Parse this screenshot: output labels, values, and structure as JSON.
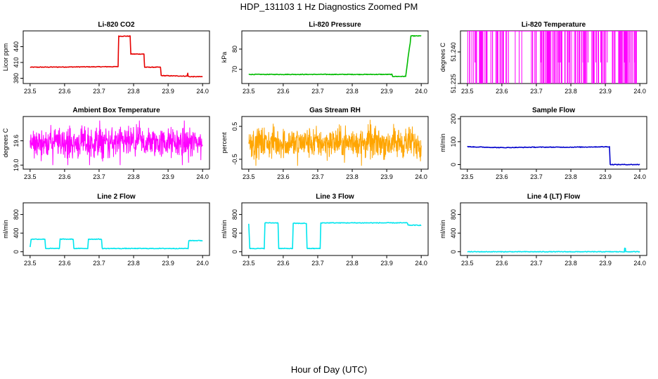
{
  "title": "HDP_131103  1 Hz Diagnostics Zoomed PM",
  "xlabel": "Hour of Day (UTC)",
  "chart_data": [
    {
      "type": "line",
      "title": "Li-820 CO2",
      "ylabel": "Licor ppm",
      "color": "#e60000",
      "xlim": [
        23.48,
        24.02
      ],
      "ylim": [
        370,
        470
      ],
      "x_ticks": [
        "23.5",
        "23.6",
        "23.7",
        "23.8",
        "23.9",
        "24.0"
      ],
      "y_ticks": [
        {
          "v": 380,
          "label": "380"
        },
        {
          "v": 410,
          "label": "410"
        },
        {
          "v": 440,
          "label": "440"
        }
      ],
      "series": [
        {
          "x": [
            23.5,
            23.755,
            23.757,
            23.79,
            23.792,
            23.83,
            23.832,
            23.878,
            23.88,
            23.955,
            23.957,
            23.958,
            23.961,
            24.0
          ],
          "y": [
            401,
            402,
            460,
            460,
            426,
            426,
            401,
            401,
            385,
            384,
            390,
            384,
            383,
            383
          ]
        }
      ]
    },
    {
      "type": "line",
      "title": "Li-820 Pressure",
      "ylabel": "kPa",
      "color": "#00bb00",
      "xlim": [
        23.48,
        24.02
      ],
      "ylim": [
        63,
        89
      ],
      "x_ticks": [
        "23.5",
        "23.6",
        "23.7",
        "23.8",
        "23.9",
        "24.0"
      ],
      "y_ticks": [
        {
          "v": 70,
          "label": "70"
        },
        {
          "v": 80,
          "label": "80"
        }
      ],
      "series": [
        {
          "x": [
            23.5,
            23.915,
            23.917,
            23.955,
            23.962,
            23.968,
            23.97,
            24.0
          ],
          "y": [
            67.5,
            67.5,
            66.5,
            66.5,
            76,
            83,
            86.5,
            86.5
          ]
        }
      ]
    },
    {
      "type": "line",
      "title": "Li-820 Temperature",
      "ylabel": "degrees C",
      "color": "#ff00ff",
      "xlim": [
        23.48,
        24.02
      ],
      "ylim": [
        51.225,
        51.25
      ],
      "x_ticks": [
        "23.5",
        "23.6",
        "23.7",
        "23.8",
        "23.9",
        "24.0"
      ],
      "y_ticks": [
        {
          "v": 51.225,
          "label": "51.225"
        },
        {
          "v": 51.24,
          "label": "51.240"
        }
      ],
      "series": [
        {
          "x": [
            23.5,
            24.0
          ],
          "y": [
            51.25,
            51.25
          ]
        }
      ],
      "dips_to": 51.225
    },
    {
      "type": "line",
      "title": "Ambient Box Temperature",
      "ylabel": "degrees C",
      "color": "#ff00ff",
      "xlim": [
        23.48,
        24.02
      ],
      "ylim": [
        18.9,
        20.2
      ],
      "x_ticks": [
        "23.5",
        "23.6",
        "23.7",
        "23.8",
        "23.9",
        "24.0"
      ],
      "y_ticks": [
        {
          "v": 19.0,
          "label": "19.0"
        },
        {
          "v": 19.6,
          "label": "19.6"
        }
      ],
      "series": [
        {
          "x": [
            23.5,
            24.0
          ],
          "y": [
            19.6,
            19.6
          ]
        }
      ],
      "noise_band": [
        19.0,
        20.1
      ]
    },
    {
      "type": "line",
      "title": "Gas Stream RH",
      "ylabel": "percent",
      "color": "#ffa500",
      "xlim": [
        23.48,
        24.02
      ],
      "ylim": [
        -0.8,
        0.8
      ],
      "x_ticks": [
        "23.5",
        "23.6",
        "23.7",
        "23.8",
        "23.9",
        "24.0"
      ],
      "y_ticks": [
        {
          "v": -0.5,
          "label": "-0.5"
        },
        {
          "v": 0.5,
          "label": "0.5"
        }
      ],
      "series": [
        {
          "x": [
            23.5,
            24.0
          ],
          "y": [
            0.0,
            0.0
          ]
        }
      ],
      "noise_band": [
        -0.7,
        0.7
      ]
    },
    {
      "type": "line",
      "title": "Sample Flow",
      "ylabel": "ml/min",
      "color": "#0000cc",
      "xlim": [
        23.48,
        24.02
      ],
      "ylim": [
        -20,
        210
      ],
      "x_ticks": [
        "23.5",
        "23.6",
        "23.7",
        "23.8",
        "23.9",
        "24.0"
      ],
      "y_ticks": [
        {
          "v": 0,
          "label": "0"
        },
        {
          "v": 100,
          "label": "100"
        },
        {
          "v": 200,
          "label": "200"
        }
      ],
      "series": [
        {
          "x": [
            23.5,
            23.6,
            23.7,
            23.8,
            23.912,
            23.914,
            24.0
          ],
          "y": [
            78,
            74,
            76,
            76,
            78,
            0,
            0
          ]
        }
      ]
    },
    {
      "type": "line",
      "title": "Line 2 Flow",
      "ylabel": "ml/min",
      "color": "#00e5ee",
      "xlim": [
        23.48,
        24.02
      ],
      "ylim": [
        -80,
        1050
      ],
      "x_ticks": [
        "23.5",
        "23.6",
        "23.7",
        "23.8",
        "23.9",
        "24.0"
      ],
      "y_ticks": [
        {
          "v": 0,
          "label": "0"
        },
        {
          "v": 400,
          "label": "400"
        },
        {
          "v": 800,
          "label": "800"
        }
      ],
      "series": [
        {
          "x": [
            23.5,
            23.503,
            23.543,
            23.545,
            23.585,
            23.587,
            23.625,
            23.627,
            23.667,
            23.669,
            23.707,
            23.709,
            23.958,
            23.96,
            24.0
          ],
          "y": [
            100,
            270,
            270,
            70,
            70,
            270,
            270,
            70,
            70,
            270,
            270,
            70,
            70,
            240,
            240
          ]
        }
      ]
    },
    {
      "type": "line",
      "title": "Line 3 Flow",
      "ylabel": "ml/min",
      "color": "#00e5ee",
      "xlim": [
        23.48,
        24.02
      ],
      "ylim": [
        -80,
        1050
      ],
      "x_ticks": [
        "23.5",
        "23.6",
        "23.7",
        "23.8",
        "23.9",
        "24.0"
      ],
      "y_ticks": [
        {
          "v": 0,
          "label": "0"
        },
        {
          "v": 400,
          "label": "400"
        },
        {
          "v": 800,
          "label": "800"
        }
      ],
      "series": [
        {
          "x": [
            23.5,
            23.503,
            23.545,
            23.547,
            23.585,
            23.587,
            23.627,
            23.629,
            23.667,
            23.669,
            23.707,
            23.709,
            23.96,
            23.962,
            24.0
          ],
          "y": [
            600,
            70,
            70,
            620,
            620,
            70,
            70,
            610,
            610,
            70,
            70,
            620,
            620,
            570,
            570
          ]
        }
      ]
    },
    {
      "type": "line",
      "title": "Line 4 (LT) Flow",
      "ylabel": "ml/min",
      "color": "#00e5ee",
      "xlim": [
        23.48,
        24.02
      ],
      "ylim": [
        -80,
        1050
      ],
      "x_ticks": [
        "23.5",
        "23.6",
        "23.7",
        "23.8",
        "23.9",
        "24.0"
      ],
      "y_ticks": [
        {
          "v": 0,
          "label": "0"
        },
        {
          "v": 400,
          "label": "400"
        },
        {
          "v": 800,
          "label": "800"
        }
      ],
      "series": [
        {
          "x": [
            23.5,
            23.955,
            23.956,
            23.958,
            23.959,
            24.0
          ],
          "y": [
            0,
            0,
            70,
            70,
            0,
            0
          ]
        }
      ]
    }
  ]
}
